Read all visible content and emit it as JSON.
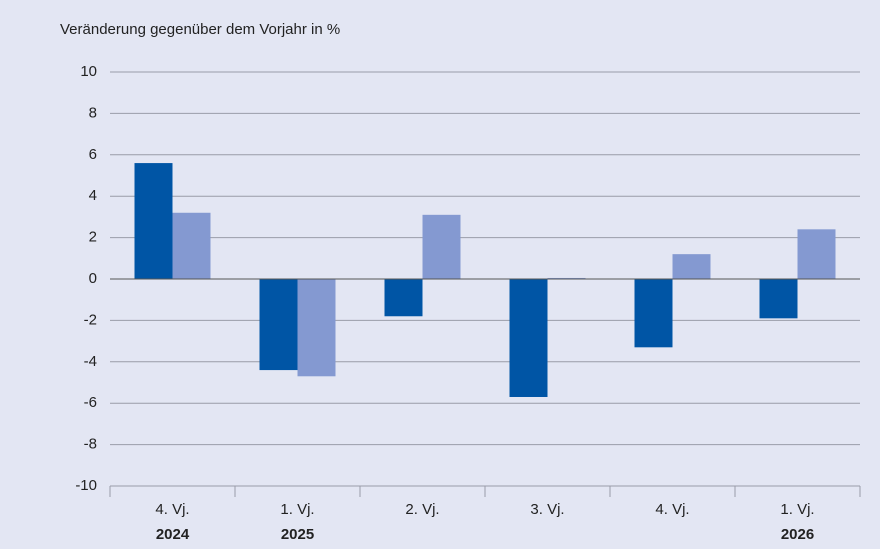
{
  "chart_data": {
    "type": "bar",
    "title": "Veränderung gegenüber dem Vorjahr in %",
    "categories": [
      "4. Vj.",
      "1. Vj.",
      "2. Vj.",
      "3. Vj.",
      "4. Vj.",
      "1. Vj."
    ],
    "groups": [
      "2024",
      "2025",
      null,
      null,
      null,
      "2026"
    ],
    "series": [
      {
        "color": "#0055a5",
        "values": [
          5.6,
          -4.4,
          -1.8,
          -5.7,
          -3.3,
          -1.9
        ]
      },
      {
        "color": "#8499d1",
        "values": [
          3.2,
          -4.7,
          3.1,
          0.05,
          1.2,
          2.4
        ]
      }
    ],
    "ylim": [
      -10,
      10
    ],
    "yticks": [
      -10,
      -8,
      -6,
      -4,
      -2,
      0,
      2,
      4,
      6,
      8,
      10
    ],
    "grid": true
  }
}
